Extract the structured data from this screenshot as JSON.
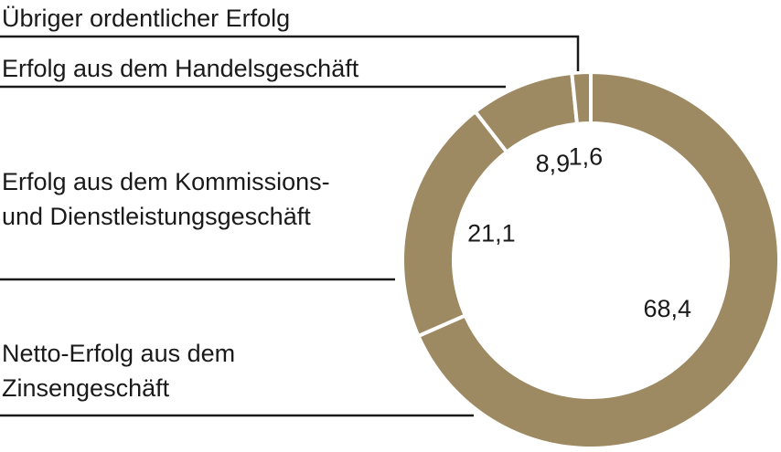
{
  "chart_data": {
    "type": "donut",
    "categories": [
      "Netto-Erfolg aus dem Zinsengeschäft",
      "Erfolg aus dem Kommissions- und Dienstleistungsgeschäft",
      "Erfolg aus dem Handelsgeschäft",
      "Übriger ordentlicher Erfolg"
    ],
    "values": [
      68.4,
      21.1,
      8.9,
      1.6
    ],
    "value_labels": [
      "68,4",
      "21,1",
      "8,9",
      "1,6"
    ],
    "color": "#9d8962"
  }
}
